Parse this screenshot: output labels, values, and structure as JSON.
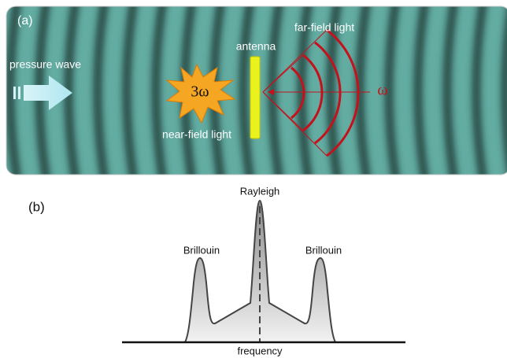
{
  "panel_a": {
    "label": "(a)",
    "pressure_wave": "pressure wave",
    "harmonic": "3ω",
    "antenna": "antenna",
    "far_field": "far-field light",
    "omega": "ω",
    "near_field": "near-field light"
  },
  "panel_b": {
    "label": "(b)",
    "center_peak": "Rayleigh",
    "left_peak": "Brillouin",
    "right_peak": "Brillouin",
    "axis_label": "frequency"
  }
}
